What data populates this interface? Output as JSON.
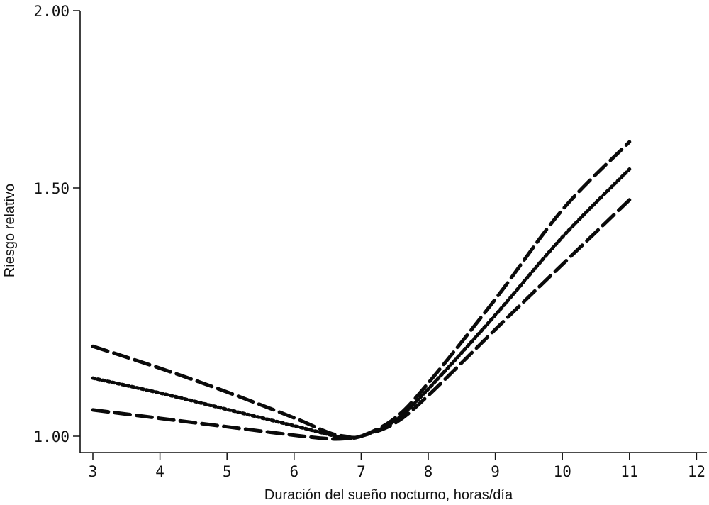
{
  "chart_data": {
    "type": "line",
    "xlabel": "Duración del sueño nocturno, horas/día",
    "ylabel": "Riesgo relativo",
    "xlim": [
      3,
      12
    ],
    "ylim": [
      1.0,
      2.0
    ],
    "x_ticks": [
      3,
      4,
      5,
      6,
      7,
      8,
      9,
      10,
      11,
      12
    ],
    "y_ticks": [
      {
        "value": 1.0,
        "label": "1.00"
      },
      {
        "value": 1.5,
        "label": "1.50"
      },
      {
        "value": 2.0,
        "label": "2.00"
      }
    ],
    "grid": false,
    "series": [
      {
        "style": "solid-dotted",
        "x": [
          3,
          4,
          5,
          6,
          6.5,
          6.75,
          7,
          7.5,
          8,
          9,
          10,
          11
        ],
        "y": [
          1.117,
          1.087,
          1.054,
          1.021,
          1.004,
          0.997,
          1.0,
          1.031,
          1.095,
          1.244,
          1.401,
          1.553
        ]
      },
      {
        "style": "long-dash",
        "x": [
          3,
          4,
          5,
          6,
          6.5,
          6.75,
          7,
          7.5,
          8,
          9,
          10,
          11
        ],
        "y": [
          1.181,
          1.137,
          1.089,
          1.037,
          1.008,
          1.0,
          1.0,
          1.036,
          1.107,
          1.276,
          1.456,
          1.63
        ]
      },
      {
        "style": "long-dash",
        "x": [
          3,
          4,
          5,
          6,
          6.5,
          6.75,
          7,
          7.5,
          8,
          9,
          10,
          11
        ],
        "y": [
          1.053,
          1.036,
          1.019,
          1.002,
          0.995,
          0.995,
          1.0,
          1.026,
          1.082,
          1.215,
          1.346,
          1.476
        ]
      }
    ]
  }
}
